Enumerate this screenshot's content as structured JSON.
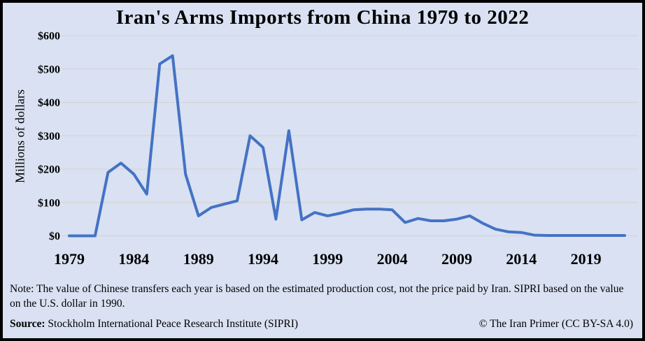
{
  "chart_data": {
    "type": "line",
    "title": "Iran's Arms Imports from China 1979 to 2022",
    "xlabel": "",
    "ylabel": "Millions of dollars",
    "x": [
      1979,
      1980,
      1981,
      1982,
      1983,
      1984,
      1985,
      1986,
      1987,
      1988,
      1989,
      1990,
      1991,
      1992,
      1993,
      1994,
      1995,
      1996,
      1997,
      1998,
      1999,
      2000,
      2001,
      2002,
      2003,
      2004,
      2005,
      2006,
      2007,
      2008,
      2009,
      2010,
      2011,
      2012,
      2013,
      2014,
      2015,
      2016,
      2017,
      2018,
      2019,
      2020,
      2021,
      2022
    ],
    "values": [
      0,
      0,
      0,
      190,
      218,
      185,
      125,
      515,
      540,
      185,
      60,
      85,
      95,
      105,
      300,
      265,
      50,
      315,
      48,
      70,
      60,
      68,
      78,
      80,
      80,
      78,
      40,
      52,
      45,
      45,
      50,
      60,
      38,
      20,
      12,
      10,
      2,
      1,
      1,
      1,
      1,
      1,
      1,
      1
    ],
    "ylim": [
      0,
      600
    ],
    "ytick_step": 100,
    "ytick_prefix": "$",
    "xticks": [
      1979,
      1984,
      1989,
      1994,
      1999,
      2004,
      2009,
      2014,
      2019
    ],
    "grid": true,
    "legend": "none",
    "line_color": "#4472c4",
    "background_color": "#d9e1f2",
    "gridline_color": "#d5d2cc",
    "border_color": "#000000"
  },
  "footer": {
    "note": "Note: The value of Chinese transfers each year is based on the estimated production cost, not the price paid by Iran. SIPRI based on the value on the U.S. dollar in 1990.",
    "source_label": "Source:",
    "source_text": " Stockholm International Peace Research Institute (SIPRI)",
    "credit": "© The Iran Primer (CC BY-SA 4.0)"
  }
}
